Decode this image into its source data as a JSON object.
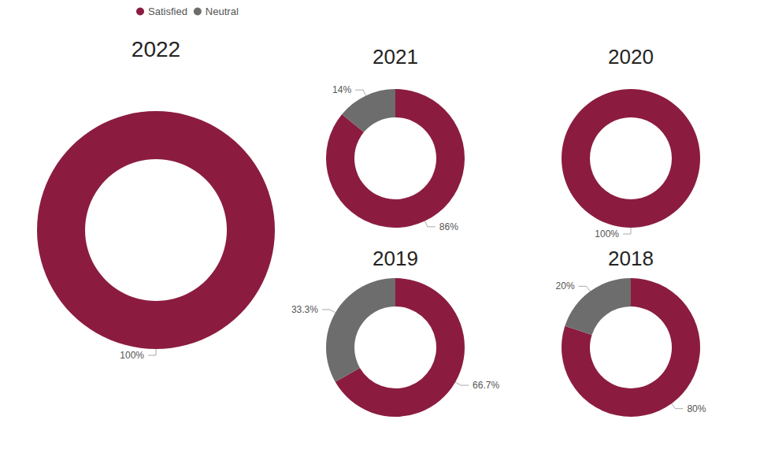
{
  "chart_data": [
    {
      "type": "pie",
      "title": "2022",
      "categories": [
        "Satisfied",
        "Neutral"
      ],
      "values": [
        100,
        null
      ],
      "value_labels": [
        "100%",
        null
      ],
      "colors": [
        "#8b1c40",
        "#6d6d6d"
      ],
      "data_labels": true,
      "legend": "top-left"
    },
    {
      "type": "pie",
      "title": "2021",
      "categories": [
        "Satisfied",
        "Neutral"
      ],
      "values": [
        86,
        14
      ],
      "value_labels": [
        "86%",
        "14%"
      ],
      "colors": [
        "#8b1c40",
        "#6d6d6d"
      ],
      "data_labels": true
    },
    {
      "type": "pie",
      "title": "2020",
      "categories": [
        "Satisfied",
        "Neutral"
      ],
      "values": [
        100,
        null
      ],
      "value_labels": [
        "100%",
        null
      ],
      "colors": [
        "#8b1c40",
        "#6d6d6d"
      ],
      "data_labels": true
    },
    {
      "type": "pie",
      "title": "2019",
      "categories": [
        "Satisfied",
        "Neutral"
      ],
      "values": [
        66.7,
        33.3
      ],
      "value_labels": [
        "66.7%",
        "33.3%"
      ],
      "colors": [
        "#8b1c40",
        "#6d6d6d"
      ],
      "data_labels": true
    },
    {
      "type": "pie",
      "title": "2018",
      "categories": [
        "Satisfied",
        "Neutral"
      ],
      "values": [
        80,
        20
      ],
      "value_labels": [
        "80%",
        "20%"
      ],
      "colors": [
        "#8b1c40",
        "#6d6d6d"
      ],
      "data_labels": true
    }
  ]
}
